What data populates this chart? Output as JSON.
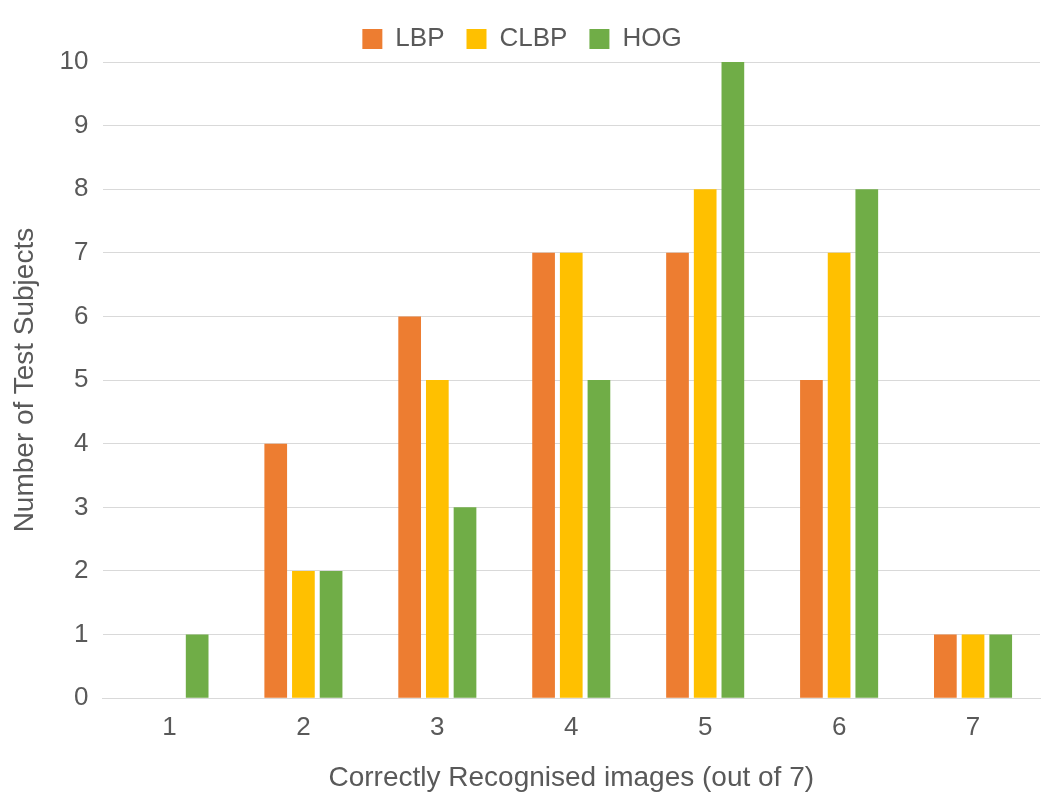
{
  "chart_data": {
    "type": "bar",
    "xlabel": "Correctly Recognised images (out of 7)",
    "ylabel": "Number of Test Subjects",
    "categories": [
      "1",
      "2",
      "3",
      "4",
      "5",
      "6",
      "7"
    ],
    "series": [
      {
        "name": "LBP",
        "color": "#ed7d31",
        "values": [
          0,
          4,
          6,
          7,
          7,
          5,
          1
        ]
      },
      {
        "name": "CLBP",
        "color": "#ffc000",
        "values": [
          0,
          2,
          5,
          7,
          8,
          7,
          1
        ]
      },
      {
        "name": "HOG",
        "color": "#70ad47",
        "values": [
          1,
          2,
          3,
          5,
          10,
          8,
          1
        ]
      }
    ],
    "ylim": [
      0,
      10
    ],
    "yticks": [
      0,
      1,
      2,
      3,
      4,
      5,
      6,
      7,
      8,
      9,
      10
    ],
    "grid": "y",
    "legend": "top"
  }
}
